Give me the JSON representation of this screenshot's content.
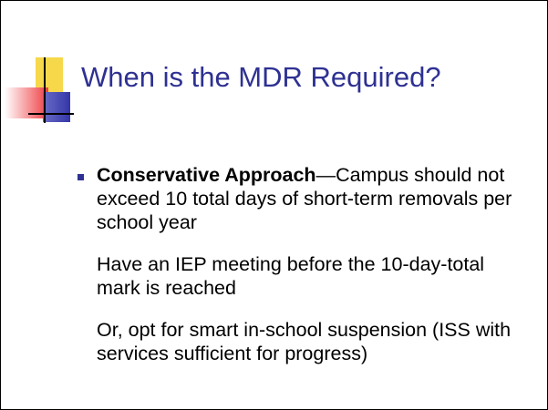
{
  "title": "When is the MDR Required?",
  "bullet": {
    "lead": "Conservative Approach",
    "text": "—Campus should not exceed 10 total days of short-term removals per school year"
  },
  "paragraphs": [
    "Have an IEP meeting before the 10-day-total mark is reached",
    "Or, opt for smart in-school suspension (ISS with services sufficient for progress)"
  ]
}
